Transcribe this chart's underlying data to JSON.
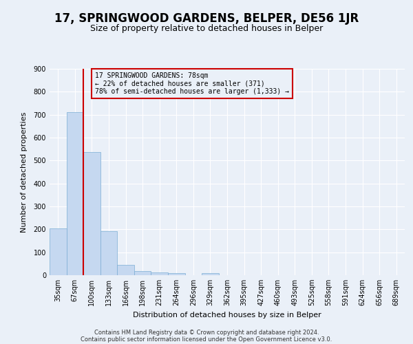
{
  "title": "17, SPRINGWOOD GARDENS, BELPER, DE56 1JR",
  "subtitle": "Size of property relative to detached houses in Belper",
  "xlabel": "Distribution of detached houses by size in Belper",
  "ylabel": "Number of detached properties",
  "categories": [
    "35sqm",
    "67sqm",
    "100sqm",
    "133sqm",
    "166sqm",
    "198sqm",
    "231sqm",
    "264sqm",
    "296sqm",
    "329sqm",
    "362sqm",
    "395sqm",
    "427sqm",
    "460sqm",
    "493sqm",
    "525sqm",
    "558sqm",
    "591sqm",
    "624sqm",
    "656sqm",
    "689sqm"
  ],
  "values": [
    203,
    712,
    537,
    193,
    44,
    18,
    13,
    10,
    0,
    9,
    0,
    0,
    0,
    0,
    0,
    0,
    0,
    0,
    0,
    0,
    0
  ],
  "bar_color": "#c5d8f0",
  "bar_edge_color": "#7badd4",
  "marker_line_color": "#cc0000",
  "ylim": [
    0,
    900
  ],
  "yticks": [
    0,
    100,
    200,
    300,
    400,
    500,
    600,
    700,
    800,
    900
  ],
  "annotation_title": "17 SPRINGWOOD GARDENS: 78sqm",
  "annotation_line1": "← 22% of detached houses are smaller (371)",
  "annotation_line2": "78% of semi-detached houses are larger (1,333) →",
  "annotation_box_color": "#cc0000",
  "footer_line1": "Contains HM Land Registry data © Crown copyright and database right 2024.",
  "footer_line2": "Contains public sector information licensed under the Open Government Licence v3.0.",
  "background_color": "#eaf0f8",
  "grid_color": "#ffffff",
  "title_fontsize": 12,
  "subtitle_fontsize": 9
}
